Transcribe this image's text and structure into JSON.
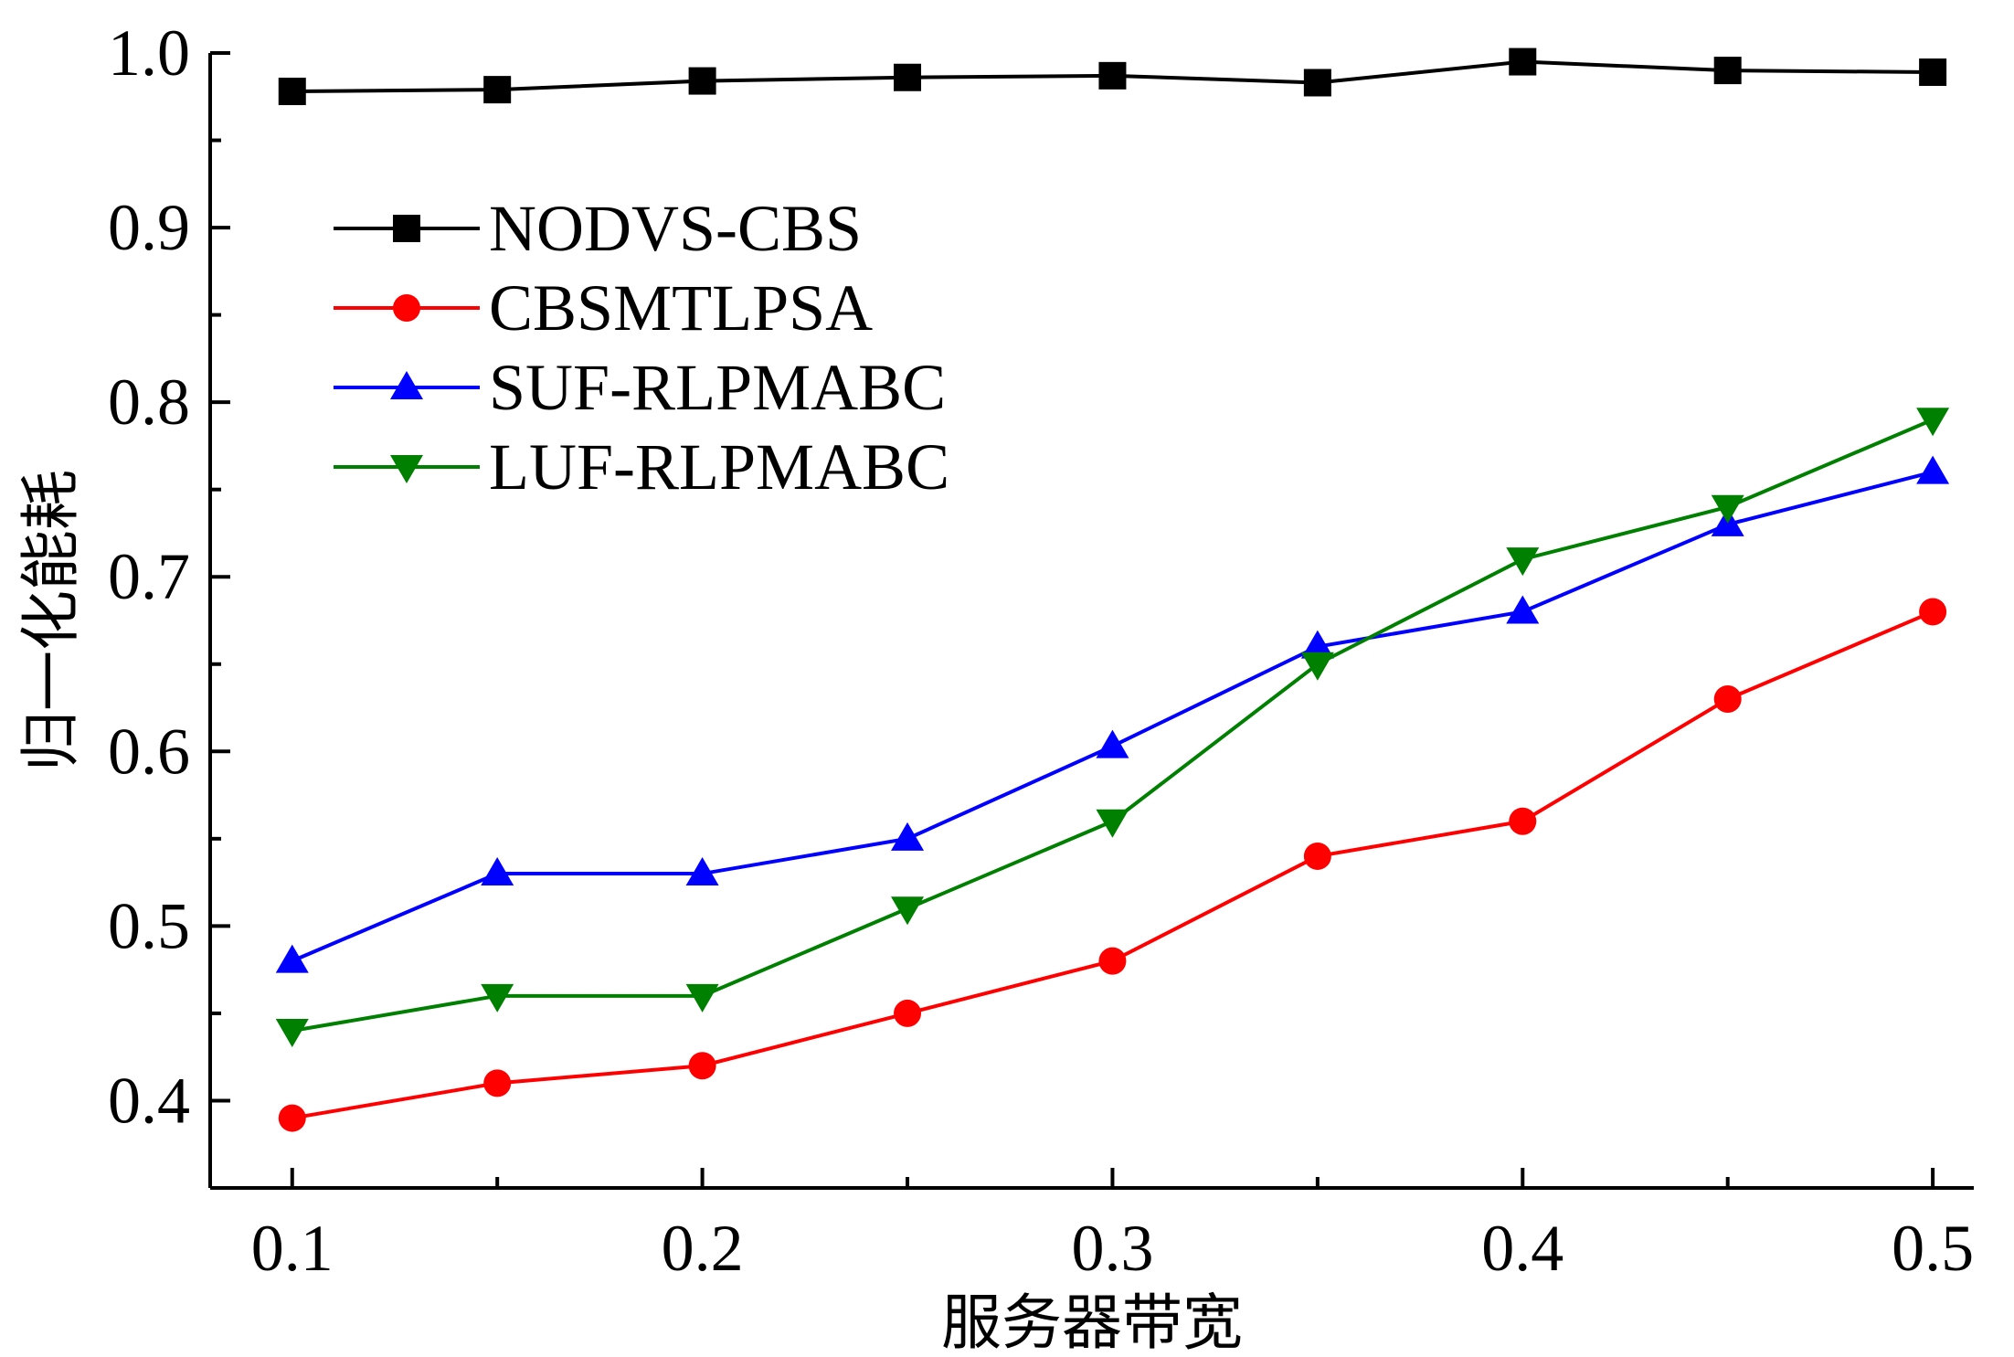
{
  "chart_data": {
    "type": "line",
    "title": "",
    "xlabel": "服务器带宽",
    "ylabel": "归一化能耗",
    "x": [
      0.1,
      0.15,
      0.2,
      0.25,
      0.3,
      0.35,
      0.4,
      0.45,
      0.5
    ],
    "xlim": [
      0.08,
      0.51
    ],
    "ylim": [
      0.35,
      1.0
    ],
    "x_ticks": [
      0.1,
      0.2,
      0.3,
      0.4,
      0.5
    ],
    "x_tick_labels": [
      "0.1",
      "0.2",
      "0.3",
      "0.4",
      "0.5"
    ],
    "y_ticks": [
      0.4,
      0.5,
      0.6,
      0.7,
      0.8,
      0.9,
      1.0
    ],
    "y_tick_labels": [
      "0.4",
      "0.5",
      "0.6",
      "0.7",
      "0.8",
      "0.9",
      "1.0"
    ],
    "grid": false,
    "legend_position": "upper-left",
    "series": [
      {
        "name": "NODVS-CBS",
        "color": "#000000",
        "marker": "square",
        "values": [
          0.978,
          0.979,
          0.984,
          0.986,
          0.987,
          0.983,
          0.995,
          0.99,
          0.989
        ]
      },
      {
        "name": "CBSMTLPSA",
        "color": "#ff0000",
        "marker": "circle",
        "values": [
          0.39,
          0.41,
          0.42,
          0.45,
          0.48,
          0.54,
          0.56,
          0.63,
          0.68
        ]
      },
      {
        "name": "SUF-RLPMABC",
        "color": "#0000ff",
        "marker": "triangle-up",
        "values": [
          0.48,
          0.53,
          0.53,
          0.55,
          0.603,
          0.66,
          0.68,
          0.73,
          0.76
        ]
      },
      {
        "name": "LUF-RLPMABC",
        "color": "#008000",
        "marker": "triangle-down",
        "values": [
          0.44,
          0.46,
          0.46,
          0.51,
          0.56,
          0.65,
          0.71,
          0.74,
          0.79
        ]
      }
    ]
  }
}
